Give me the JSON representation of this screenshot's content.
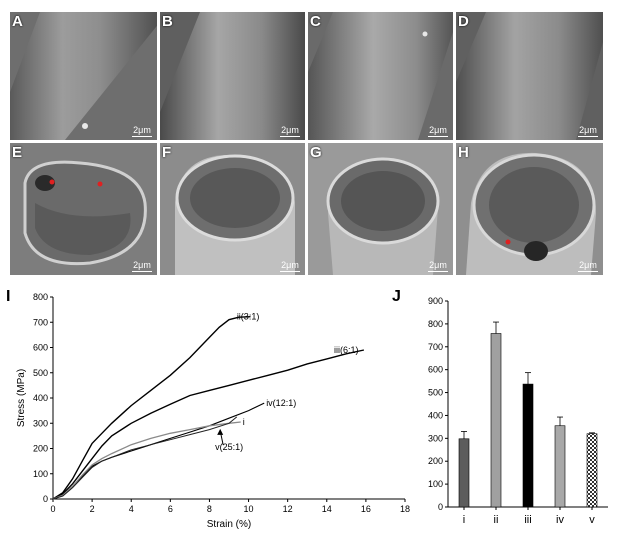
{
  "panels_top": [
    {
      "label": "A",
      "scale": "2μm"
    },
    {
      "label": "B",
      "scale": "2μm"
    },
    {
      "label": "C",
      "scale": "2μm"
    },
    {
      "label": "D",
      "scale": "2μm"
    }
  ],
  "panels_bottom": [
    {
      "label": "E",
      "scale": "2μm"
    },
    {
      "label": "F",
      "scale": "2μm"
    },
    {
      "label": "G",
      "scale": "2μm"
    },
    {
      "label": "H",
      "scale": "2μm"
    }
  ],
  "chart_data": [
    {
      "panel": "I",
      "type": "line",
      "xlabel": "Strain (%)",
      "ylabel": "Stress (MPa)",
      "xlim": [
        0,
        18
      ],
      "ylim": [
        0,
        800
      ],
      "xticks": [
        0,
        2,
        4,
        6,
        8,
        10,
        12,
        14,
        16,
        18
      ],
      "yticks": [
        0,
        100,
        200,
        300,
        400,
        500,
        600,
        700,
        800
      ],
      "series": [
        {
          "name": "ii(3:1)",
          "x": [
            0,
            0.5,
            1,
            1.5,
            2,
            2.5,
            3,
            4,
            5,
            6,
            7,
            8,
            8.5,
            9,
            9.5,
            10.1
          ],
          "y": [
            0,
            25,
            80,
            150,
            220,
            260,
            300,
            370,
            430,
            490,
            560,
            640,
            680,
            710,
            720,
            722
          ]
        },
        {
          "name": "iii(6:1)",
          "x": [
            0,
            0.5,
            1,
            1.5,
            2,
            2.5,
            3,
            4,
            5,
            6,
            7,
            8,
            9,
            10,
            11,
            12,
            13,
            14,
            15,
            15.9
          ],
          "y": [
            0,
            20,
            60,
            110,
            160,
            210,
            250,
            300,
            340,
            375,
            410,
            430,
            450,
            470,
            490,
            510,
            535,
            555,
            575,
            590
          ]
        },
        {
          "name": "iv(12:1)",
          "x": [
            0,
            0.5,
            1,
            1.5,
            2,
            2.5,
            3,
            4,
            5,
            6,
            7,
            8,
            9,
            10,
            10.8
          ],
          "y": [
            0,
            15,
            50,
            90,
            130,
            150,
            165,
            190,
            215,
            240,
            265,
            290,
            320,
            350,
            380
          ]
        },
        {
          "name": "i",
          "x": [
            0,
            0.5,
            1,
            1.5,
            2,
            2.5,
            3,
            4,
            5,
            6,
            7,
            8,
            9,
            9.6
          ],
          "y": [
            0,
            15,
            50,
            95,
            135,
            160,
            180,
            215,
            240,
            260,
            275,
            290,
            300,
            305
          ]
        },
        {
          "name": "v(25:1)",
          "x": [
            0,
            0.5,
            1,
            1.5,
            2,
            2.5,
            3,
            4,
            5,
            6,
            7,
            8,
            9,
            9.4
          ],
          "y": [
            0,
            12,
            45,
            85,
            125,
            150,
            165,
            195,
            215,
            235,
            255,
            275,
            300,
            325
          ]
        }
      ]
    },
    {
      "panel": "J",
      "type": "bar",
      "categories": [
        "i",
        "ii",
        "iii",
        "iv",
        "v"
      ],
      "values": [
        298,
        758,
        537,
        355,
        320
      ],
      "errors": [
        32,
        50,
        50,
        38,
        4
      ],
      "ylim": [
        0,
        900
      ],
      "yticks": [
        0,
        100,
        200,
        300,
        400,
        500,
        600,
        700,
        800,
        900
      ],
      "colors": [
        "#5c5c5c",
        "#a0a0a0",
        "#000000",
        "#a8a8a8",
        "checker"
      ]
    }
  ]
}
